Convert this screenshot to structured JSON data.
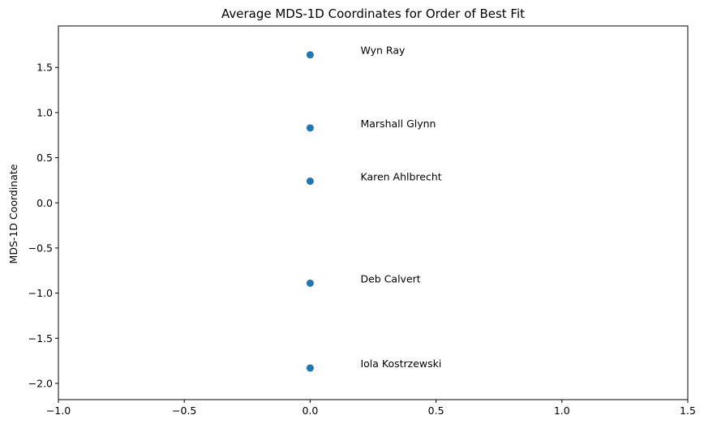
{
  "chart_data": {
    "type": "scatter",
    "title": "Average MDS-1D Coordinates for Order of Best Fit",
    "xlabel": "",
    "ylabel": "MDS-1D Coordinate",
    "xlim": [
      -1.0,
      1.5
    ],
    "ylim": [
      -2.18,
      1.96
    ],
    "xticks": [
      -1.0,
      -0.5,
      0.0,
      0.5,
      1.0,
      1.5
    ],
    "xtick_labels": [
      "−1.0",
      "−0.5",
      "0.0",
      "0.5",
      "1.0",
      "1.5"
    ],
    "yticks": [
      1.5,
      1.0,
      0.5,
      0.0,
      -0.5,
      -1.0,
      -1.5,
      -2.0
    ],
    "ytick_labels": [
      "1.5",
      "1.0",
      "0.5",
      "0.0",
      "−0.5",
      "−1.0",
      "−1.5",
      "−2.0"
    ],
    "grid": false,
    "marker_color": "#1f77b4",
    "points": [
      {
        "label": "Wyn Ray",
        "x": 0.0,
        "y": 1.64
      },
      {
        "label": "Marshall Glynn",
        "x": 0.0,
        "y": 0.83
      },
      {
        "label": "Karen Ahlbrecht",
        "x": 0.0,
        "y": 0.24
      },
      {
        "label": "Deb Calvert",
        "x": 0.0,
        "y": -0.89
      },
      {
        "label": "Iola Kostrzewski",
        "x": 0.0,
        "y": -1.83
      }
    ],
    "label_offset_x": 0.2
  }
}
